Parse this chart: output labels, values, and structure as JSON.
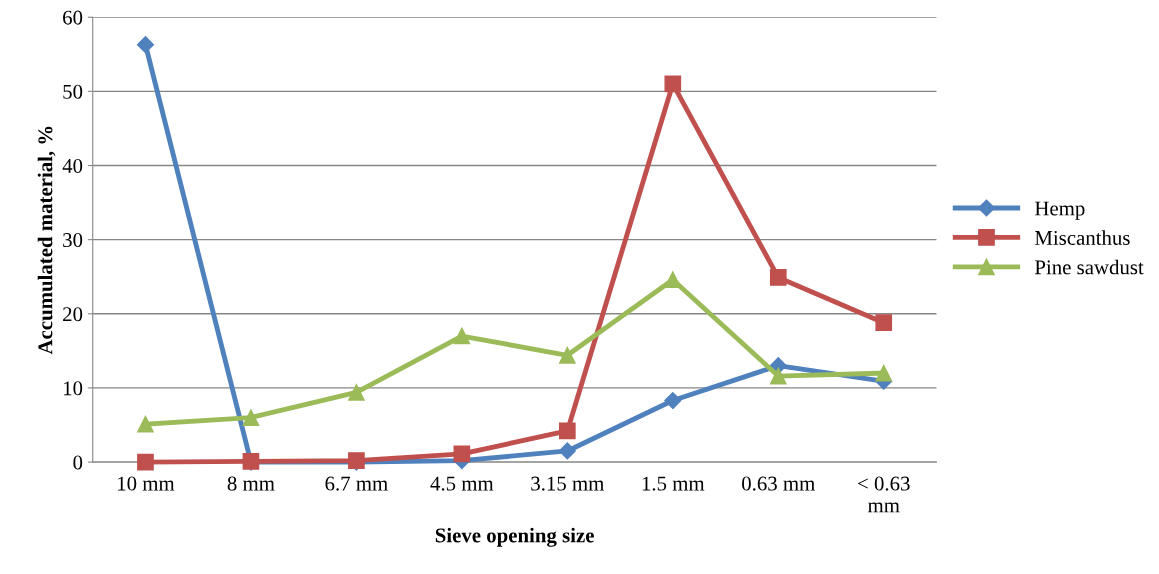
{
  "chart_data": {
    "type": "line",
    "xlabel": "Sieve opening size",
    "ylabel": "Accumulated material, %",
    "categories": [
      "10 mm",
      "8 mm",
      "6.7 mm",
      "4.5 mm",
      "3.15 mm",
      "1.5 mm",
      "0.63 mm",
      "< 0.63\nmm"
    ],
    "series": [
      {
        "name": "Hemp",
        "color": "#4f81bd",
        "marker": "diamond",
        "values": [
          56.3,
          0,
          0,
          0.2,
          1.5,
          8.3,
          13.0,
          10.9
        ]
      },
      {
        "name": "Miscanthus",
        "color": "#c0504d",
        "marker": "square",
        "values": [
          0,
          0.1,
          0.2,
          1.1,
          4.2,
          51.0,
          24.9,
          18.8
        ]
      },
      {
        "name": "Pine sawdust",
        "color": "#9bbb59",
        "marker": "triangle",
        "values": [
          5.1,
          6.0,
          9.4,
          17.0,
          14.4,
          24.6,
          11.6,
          12.0
        ]
      }
    ],
    "ylim": [
      0,
      60
    ],
    "yticks": [
      0,
      10,
      20,
      30,
      40,
      50,
      60
    ],
    "grid": "y",
    "legend": "right",
    "line_style": "solid"
  }
}
